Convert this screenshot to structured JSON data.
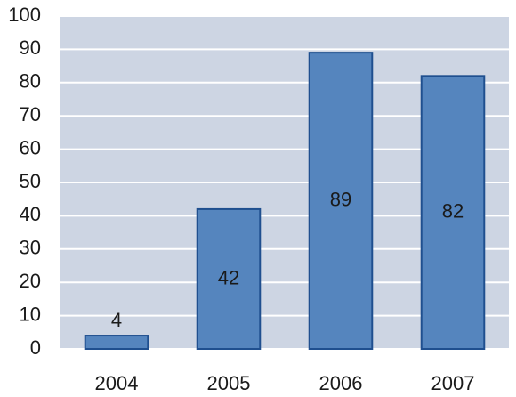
{
  "chart_data": {
    "type": "bar",
    "categories": [
      "2004",
      "2005",
      "2006",
      "2007"
    ],
    "values": [
      4,
      42,
      89,
      82
    ],
    "color": "#5585be",
    "ylim": [
      0,
      100
    ],
    "yticks": [
      0,
      10,
      20,
      30,
      40,
      50,
      60,
      70,
      80,
      90,
      100
    ],
    "grid": true
  }
}
